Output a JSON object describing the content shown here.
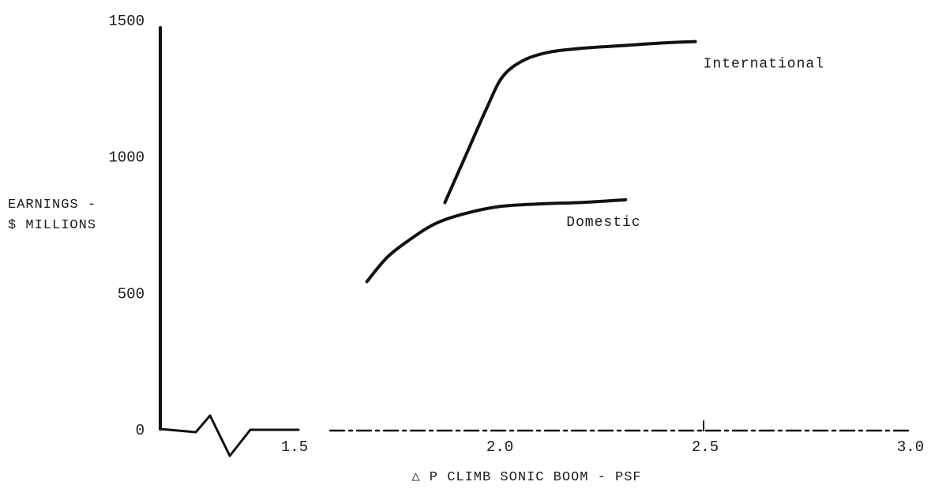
{
  "chart_data": {
    "type": "line",
    "title": "",
    "xlabel": "△ P CLIMB SONIC BOOM - PSF",
    "ylabel": "EARNINGS -\n$ MILLIONS",
    "ylabel_lines": [
      "EARNINGS -",
      "$ MILLIONS"
    ],
    "xlim": [
      1.25,
      3.0
    ],
    "ylim": [
      0,
      1500
    ],
    "x_ticks": [
      1.5,
      2.0,
      2.5,
      3.0
    ],
    "x_tick_labels": [
      "1.5",
      "2.0",
      "2.5",
      "3.0"
    ],
    "y_ticks": [
      0,
      500,
      1000,
      1500
    ],
    "y_tick_labels": [
      "0",
      "500",
      "1000",
      "1500"
    ],
    "grid": false,
    "legend": "none (curves labeled inline)",
    "series": [
      {
        "name": "International",
        "x": [
          1.87,
          1.92,
          1.97,
          2.01,
          2.06,
          2.12,
          2.2,
          2.3,
          2.4,
          2.48
        ],
        "y": [
          830,
          1000,
          1170,
          1290,
          1350,
          1380,
          1395,
          1405,
          1415,
          1420
        ]
      },
      {
        "name": "Domestic",
        "x": [
          1.68,
          1.73,
          1.79,
          1.85,
          1.92,
          2.0,
          2.1,
          2.2,
          2.31
        ],
        "y": [
          540,
          630,
          700,
          755,
          790,
          815,
          825,
          830,
          840
        ]
      }
    ]
  }
}
